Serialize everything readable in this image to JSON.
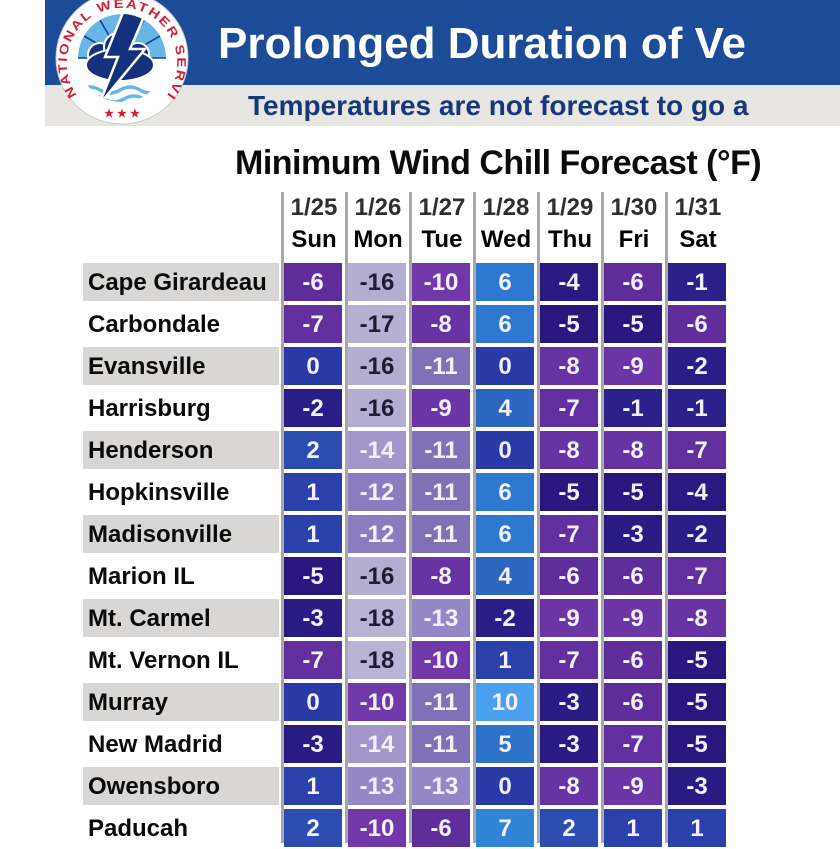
{
  "banner": {
    "title": "Prolonged Duration of Ve",
    "subtitle": "Temperatures are not forecast to go a"
  },
  "logo": {
    "ring_text": "NATIONAL WEATHER SERVICE",
    "stars": "★ ★ ★"
  },
  "ui_colors": {
    "banner_bg": "#1c4b97",
    "subtitle_strip_bg": "#e7e6e2",
    "subtitle_text": "#16387a",
    "row_stripe": "#d8d7d5",
    "column_divider": "#a9a8a6"
  },
  "chart_data": {
    "type": "heatmap",
    "title": "Minimum Wind Chill Forecast (°F)",
    "unit": "°F",
    "columns": [
      {
        "date": "1/25",
        "day": "Sun"
      },
      {
        "date": "1/26",
        "day": "Mon"
      },
      {
        "date": "1/27",
        "day": "Tue"
      },
      {
        "date": "1/28",
        "day": "Wed"
      },
      {
        "date": "1/29",
        "day": "Thu"
      },
      {
        "date": "1/30",
        "day": "Fri"
      },
      {
        "date": "1/31",
        "day": "Sat"
      }
    ],
    "rows": [
      {
        "city": "Cape Girardeau",
        "values": [
          -6,
          -16,
          -10,
          6,
          -4,
          -6,
          -1
        ]
      },
      {
        "city": "Carbondale",
        "values": [
          -7,
          -17,
          -8,
          6,
          -5,
          -5,
          -6
        ]
      },
      {
        "city": "Evansville",
        "values": [
          0,
          -16,
          -11,
          0,
          -8,
          -9,
          -2
        ]
      },
      {
        "city": "Harrisburg",
        "values": [
          -2,
          -16,
          -9,
          4,
          -7,
          -1,
          -1
        ]
      },
      {
        "city": "Henderson",
        "values": [
          2,
          -14,
          -11,
          0,
          -8,
          -8,
          -7
        ]
      },
      {
        "city": "Hopkinsville",
        "values": [
          1,
          -12,
          -11,
          6,
          -5,
          -5,
          -4
        ]
      },
      {
        "city": "Madisonville",
        "values": [
          1,
          -12,
          -11,
          6,
          -7,
          -3,
          -2
        ]
      },
      {
        "city": "Marion IL",
        "values": [
          -5,
          -16,
          -8,
          4,
          -6,
          -6,
          -7
        ]
      },
      {
        "city": "Mt. Carmel",
        "values": [
          -3,
          -18,
          -13,
          -2,
          -9,
          -9,
          -8
        ]
      },
      {
        "city": "Mt. Vernon IL",
        "values": [
          -7,
          -18,
          -10,
          1,
          -7,
          -6,
          -5
        ]
      },
      {
        "city": "Murray",
        "values": [
          0,
          -10,
          -11,
          10,
          -3,
          -6,
          -5
        ]
      },
      {
        "city": "New Madrid",
        "values": [
          -3,
          -14,
          -11,
          5,
          -3,
          -7,
          -5
        ]
      },
      {
        "city": "Owensboro",
        "values": [
          1,
          -13,
          -13,
          0,
          -8,
          -9,
          -3
        ]
      },
      {
        "city": "Paducah",
        "values": [
          2,
          -10,
          -6,
          7,
          2,
          1,
          1
        ]
      }
    ],
    "color_scale": {
      "10": "#4a9ff0",
      "7": "#3183d8",
      "6": "#2d79d1",
      "5": "#2d71c8",
      "4": "#2b67c0",
      "2": "#2b4db2",
      "1": "#2a41ac",
      "0": "#293aa7",
      "-1": "#2b2089",
      "-2": "#2a1d85",
      "-3": "#2a1b82",
      "-4": "#291980",
      "-5": "#2a177e",
      "-6": "#5e2d9a",
      "-7": "#622f9e",
      "-8": "#6732a2",
      "-9": "#6c35a5",
      "-10": "#7038a8",
      "-11": "#8070b5",
      "-12": "#8a7cbe",
      "-13": "#9487c5",
      "-14": "#a296cb",
      "-16": "#b3add2",
      "-17": "#b6b0d4",
      "-18": "#b9b3d6"
    },
    "dark_text_threshold": -16,
    "cell_text_light": "#f4f0fb",
    "cell_text_dark": "#1d1d32",
    "legend_position": "none",
    "grid": "column-dividers"
  }
}
